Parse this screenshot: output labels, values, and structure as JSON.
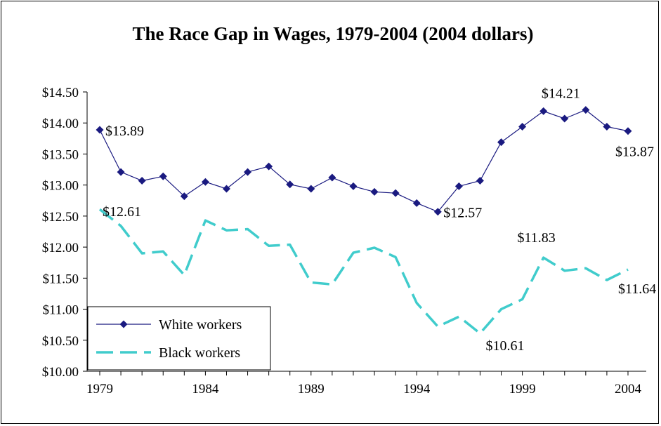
{
  "chart_data": {
    "type": "line",
    "title": "The Race Gap in Wages, 1979-2004 (2004 dollars)",
    "xlabel": "",
    "ylabel": "",
    "x": [
      1979,
      1980,
      1981,
      1982,
      1983,
      1984,
      1985,
      1986,
      1987,
      1988,
      1989,
      1990,
      1991,
      1992,
      1993,
      1994,
      1995,
      1996,
      1997,
      1998,
      1999,
      2000,
      2001,
      2002,
      2003,
      2004
    ],
    "x_ticks": [
      "1979",
      "1984",
      "1989",
      "1994",
      "1999",
      "2004"
    ],
    "y_ticks": [
      "$10.00",
      "$10.50",
      "$11.00",
      "$11.50",
      "$12.00",
      "$12.50",
      "$13.00",
      "$13.50",
      "$14.00",
      "$14.50"
    ],
    "ylim": [
      10.0,
      14.5
    ],
    "grid": false,
    "legend_position": "bottom-left",
    "series": [
      {
        "name": "White workers",
        "color": "#1a1a80",
        "style": "solid-diamond",
        "values": [
          13.89,
          13.21,
          13.07,
          13.14,
          12.82,
          13.05,
          12.94,
          13.21,
          13.3,
          13.01,
          12.94,
          13.12,
          12.98,
          12.89,
          12.87,
          12.71,
          12.57,
          12.98,
          13.07,
          13.69,
          13.94,
          14.19,
          14.07,
          14.21,
          13.94,
          13.87
        ]
      },
      {
        "name": "Black workers",
        "color": "#40cccc",
        "style": "dashed",
        "values": [
          12.61,
          12.34,
          11.9,
          11.93,
          11.55,
          12.43,
          12.27,
          12.29,
          12.02,
          12.04,
          11.43,
          11.4,
          11.91,
          11.99,
          11.84,
          11.1,
          10.72,
          10.88,
          10.61,
          11.0,
          11.16,
          11.83,
          11.62,
          11.66,
          11.47,
          11.64
        ]
      }
    ],
    "annotations": [
      {
        "series": 0,
        "index": 0,
        "text": "$13.89"
      },
      {
        "series": 0,
        "index": 16,
        "text": "$12.57"
      },
      {
        "series": 0,
        "index": 23,
        "text": "$14.21"
      },
      {
        "series": 0,
        "index": 25,
        "text": "$13.87"
      },
      {
        "series": 1,
        "index": 0,
        "text": "$12.61"
      },
      {
        "series": 1,
        "index": 18,
        "text": "$10.61"
      },
      {
        "series": 1,
        "index": 21,
        "text": "$11.83"
      },
      {
        "series": 1,
        "index": 25,
        "text": "$11.64"
      }
    ]
  }
}
